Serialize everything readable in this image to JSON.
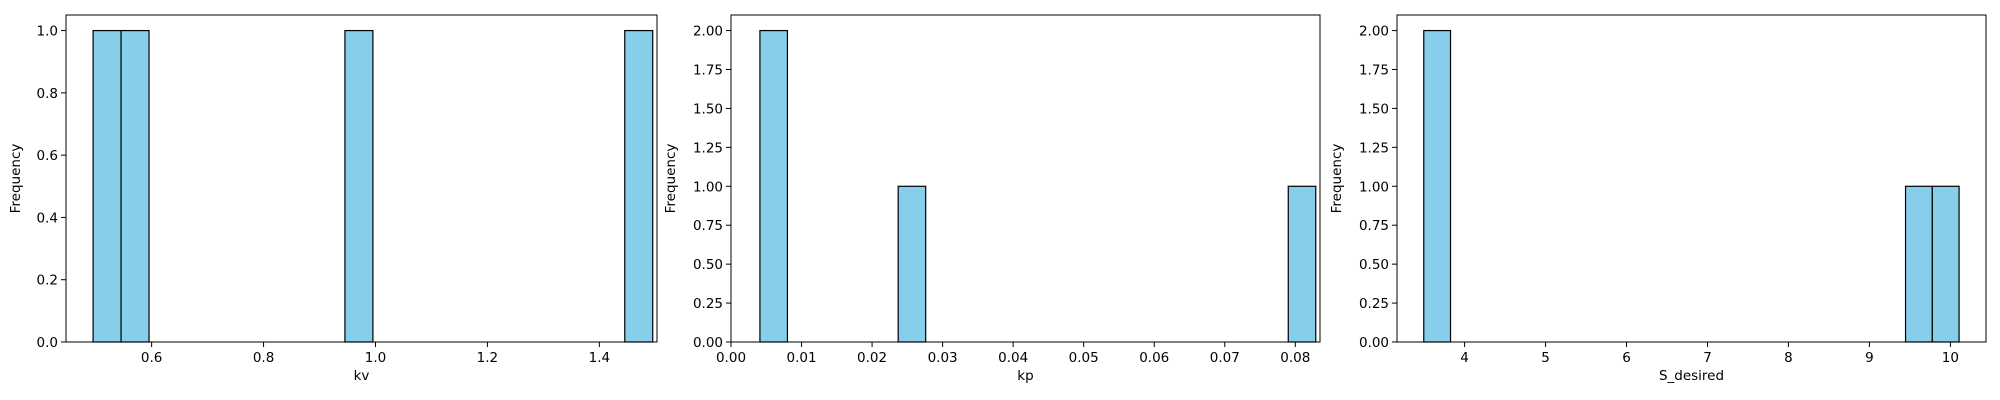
{
  "chart_data": [
    {
      "type": "histogram",
      "xlabel": "kv",
      "ylabel": "Frequency",
      "xlim": [
        0.447,
        1.503
      ],
      "ylim": [
        0,
        1.05
      ],
      "xticks": [
        0.6,
        0.8,
        1.0,
        1.2,
        1.4
      ],
      "xtick_labels": [
        "0.6",
        "0.8",
        "1.0",
        "1.2",
        "1.4"
      ],
      "yticks": [
        0.0,
        0.2,
        0.4,
        0.6,
        0.8,
        1.0
      ],
      "ytick_labels": [
        "0.0",
        "0.2",
        "0.4",
        "0.6",
        "0.8",
        "1.0"
      ],
      "bins": [
        {
          "x0": 0.4954,
          "x1": 0.5454,
          "count": 1
        },
        {
          "x0": 0.5454,
          "x1": 0.5954,
          "count": 1
        },
        {
          "x0": 0.9454,
          "x1": 0.9954,
          "count": 1
        },
        {
          "x0": 1.4454,
          "x1": 1.4954,
          "count": 1
        }
      ],
      "bar_color": "#87CEEB",
      "edge_color": "#000000",
      "grid": false
    },
    {
      "type": "histogram",
      "xlabel": "kp",
      "ylabel": "Frequency",
      "xlim": [
        0.0,
        0.0835
      ],
      "ylim": [
        0,
        2.1
      ],
      "xticks": [
        0.0,
        0.01,
        0.02,
        0.03,
        0.04,
        0.05,
        0.06,
        0.07,
        0.08
      ],
      "xtick_labels": [
        "0.00",
        "0.01",
        "0.02",
        "0.03",
        "0.04",
        "0.05",
        "0.06",
        "0.07",
        "0.08"
      ],
      "yticks": [
        0.0,
        0.25,
        0.5,
        0.75,
        1.0,
        1.25,
        1.5,
        1.75,
        2.0
      ],
      "ytick_labels": [
        "0.00",
        "0.25",
        "0.50",
        "0.75",
        "1.00",
        "1.25",
        "1.50",
        "1.75",
        "2.00"
      ],
      "bins": [
        {
          "x0": 0.0041,
          "x1": 0.008,
          "count": 2
        },
        {
          "x0": 0.0237,
          "x1": 0.0276,
          "count": 1
        },
        {
          "x0": 0.079,
          "x1": 0.0829,
          "count": 1
        }
      ],
      "bar_color": "#87CEEB",
      "edge_color": "#000000",
      "grid": false
    },
    {
      "type": "histogram",
      "xlabel": "S_desired",
      "ylabel": "Frequency",
      "xlim": [
        3.165,
        10.44
      ],
      "ylim": [
        0,
        2.1
      ],
      "xticks": [
        4,
        5,
        6,
        7,
        8,
        9,
        10
      ],
      "xtick_labels": [
        "4",
        "5",
        "6",
        "7",
        "8",
        "9",
        "10"
      ],
      "yticks": [
        0.0,
        0.25,
        0.5,
        0.75,
        1.0,
        1.25,
        1.5,
        1.75,
        2.0
      ],
      "ytick_labels": [
        "0.00",
        "0.25",
        "0.50",
        "0.75",
        "1.00",
        "1.25",
        "1.50",
        "1.75",
        "2.00"
      ],
      "bins": [
        {
          "x0": 3.4957,
          "x1": 3.8263,
          "count": 2
        },
        {
          "x0": 9.4462,
          "x1": 9.7768,
          "count": 1
        },
        {
          "x0": 9.7768,
          "x1": 10.1074,
          "count": 1
        }
      ],
      "bar_color": "#87CEEB",
      "edge_color": "#000000",
      "grid": false
    }
  ]
}
